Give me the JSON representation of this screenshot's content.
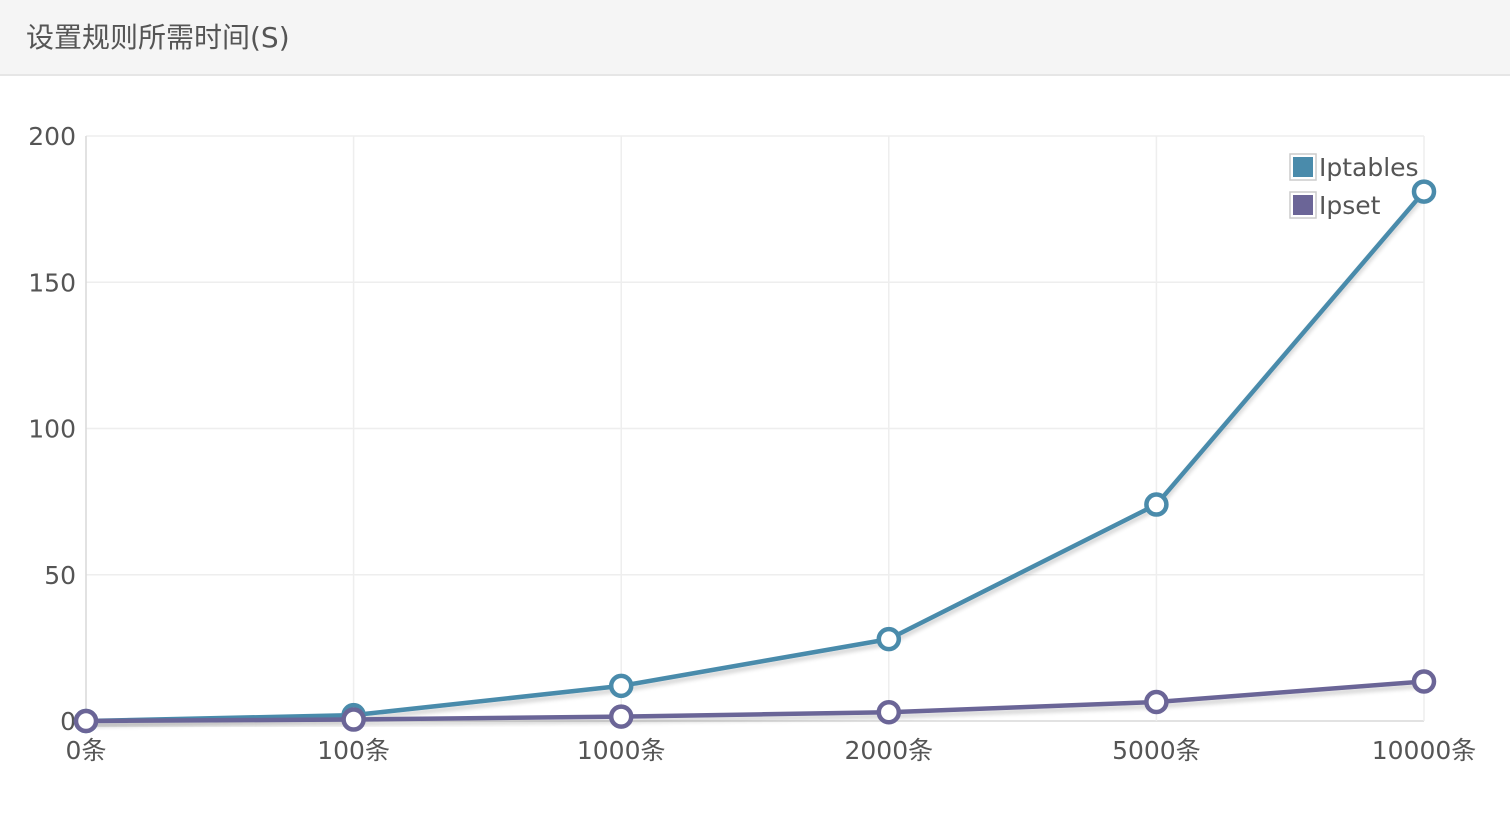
{
  "panel": {
    "title": "设置规则所需时间(S)"
  },
  "chart_data": {
    "type": "line",
    "title": "设置规则所需时间(S)",
    "categories": [
      "0条",
      "100条",
      "1000条",
      "2000条",
      "5000条",
      "10000条"
    ],
    "series": [
      {
        "name": "Iptables",
        "color": "#4a8bab",
        "values": [
          0,
          2,
          12,
          28,
          74,
          181
        ]
      },
      {
        "name": "Ipset",
        "color": "#6b6597",
        "values": [
          0,
          0.5,
          1.5,
          3,
          6.5,
          13.5
        ]
      }
    ],
    "ylim": [
      0,
      200
    ],
    "yticks": [
      0,
      50,
      100,
      150,
      200
    ],
    "grid": true,
    "legend_position": "top-right"
  }
}
